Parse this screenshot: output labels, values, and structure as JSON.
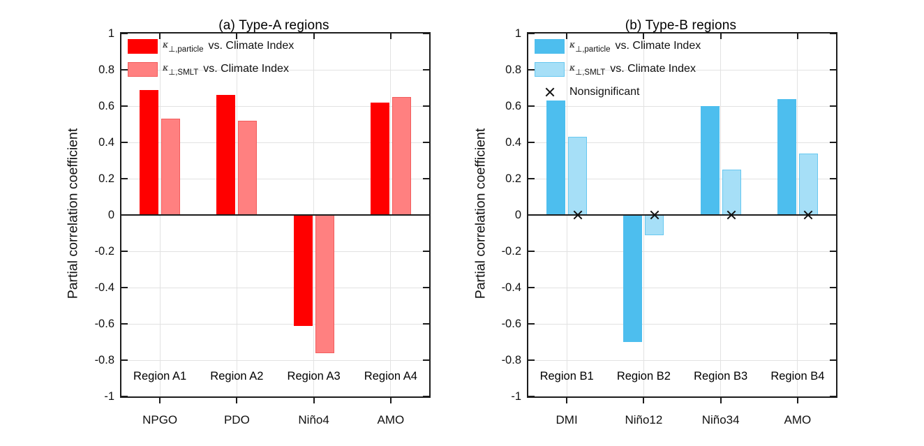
{
  "figure": {
    "background": "#ffffff"
  },
  "chart_data": [
    {
      "id": "a",
      "type": "bar",
      "title": "(a) Type-A regions",
      "ylabel": "Partial correlation coefficient",
      "xlabel": "",
      "ylim": [
        -1,
        1
      ],
      "grid": true,
      "legend_position": "top-left",
      "ytick_values": [
        1,
        0.8,
        0.6,
        0.4,
        0.2,
        0,
        -0.2,
        -0.4,
        -0.6,
        -0.8,
        -1
      ],
      "ytick_labels": [
        "1",
        "0.8",
        "0.6",
        "0.4",
        "0.2",
        "0",
        "-0.2",
        "-0.4",
        "-0.6",
        "-0.8",
        "-1"
      ],
      "categories": [
        "NPGO",
        "PDO",
        "Niño4",
        "AMO"
      ],
      "group_labels": [
        "Region A1",
        "Region A2",
        "Region A3",
        "Region A4"
      ],
      "series": [
        {
          "name": "κ⊥,particle vs. Climate Index",
          "symbol": "κ",
          "subscript": "⊥,particle",
          "suffix": "vs. Climate Index",
          "color": "#ff0000",
          "edge_color": "#ff0000",
          "values": [
            0.69,
            0.66,
            -0.61,
            0.62
          ]
        },
        {
          "name": "κ⊥,SMLT vs. Climate Index",
          "symbol": "κ",
          "subscript": "⊥,SMLT",
          "suffix": "vs. Climate Index",
          "color": "#ff8080",
          "edge_color": "#f25c5c",
          "values": [
            0.53,
            0.52,
            -0.76,
            0.65
          ]
        }
      ]
    },
    {
      "id": "b",
      "type": "bar",
      "title": "(b) Type-B regions",
      "ylabel": "Partial correlation coefficient",
      "xlabel": "",
      "ylim": [
        -1,
        1
      ],
      "grid": true,
      "legend_position": "top-left",
      "ytick_values": [
        1,
        0.8,
        0.6,
        0.4,
        0.2,
        0,
        -0.2,
        -0.4,
        -0.6,
        -0.8,
        -1
      ],
      "ytick_labels": [
        "1",
        "0.8",
        "0.6",
        "0.4",
        "0.2",
        "0",
        "-0.2",
        "-0.4",
        "-0.6",
        "-0.8",
        "-1"
      ],
      "categories": [
        "DMI",
        "Niño12",
        "Niño34",
        "AMO"
      ],
      "group_labels": [
        "Region B1",
        "Region B2",
        "Region B3",
        "Region B4"
      ],
      "series": [
        {
          "name": "κ⊥,particle vs. Climate Index",
          "symbol": "κ",
          "subscript": "⊥,particle",
          "suffix": "vs. Climate Index",
          "color": "#4dbeee",
          "edge_color": "#4dbeee",
          "values": [
            0.63,
            -0.7,
            0.6,
            0.64
          ]
        },
        {
          "name": "κ⊥,SMLT vs. Climate Index",
          "symbol": "κ",
          "subscript": "⊥,SMLT",
          "suffix": "vs. Climate Index",
          "color": "#a6dff7",
          "edge_color": "#67c8f0",
          "values": [
            0.43,
            -0.11,
            0.25,
            0.34
          ]
        }
      ],
      "nonsignificant": {
        "label": "Nonsignificant",
        "marker": "x",
        "points": [
          {
            "category": "DMI",
            "series": "κ⊥,SMLT",
            "y": 0
          },
          {
            "category": "Niño12",
            "series": "κ⊥,SMLT",
            "y": 0
          },
          {
            "category": "Niño34",
            "series": "κ⊥,SMLT",
            "y": 0
          },
          {
            "category": "AMO",
            "series": "κ⊥,SMLT",
            "y": 0
          }
        ]
      }
    }
  ]
}
